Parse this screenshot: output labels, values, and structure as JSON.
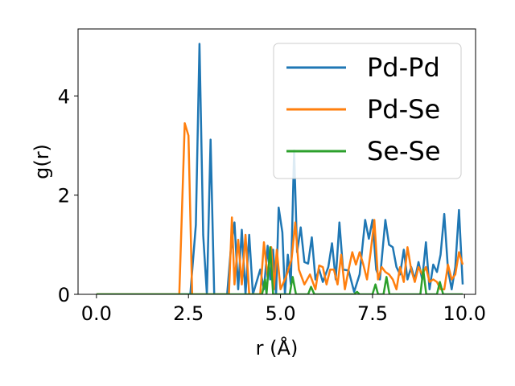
{
  "chart_data": {
    "type": "line",
    "xlabel": "r (Å)",
    "ylabel": "g(r)",
    "xlim": [
      -0.5,
      10.3
    ],
    "ylim": [
      0,
      5.35
    ],
    "x_ticks": [
      0.0,
      2.5,
      5.0,
      7.5,
      10.0
    ],
    "x_tick_labels": [
      "0.0",
      "2.5",
      "5.0",
      "7.5",
      "10.0"
    ],
    "y_ticks": [
      0,
      2,
      4
    ],
    "y_tick_labels": [
      "0",
      "2",
      "4"
    ],
    "grid": false,
    "legend_position": "top-right",
    "series": [
      {
        "name": "Pd-Pd",
        "color": "#1f77b4",
        "points": [
          [
            0.0,
            0
          ],
          [
            2.55,
            0
          ],
          [
            2.7,
            1.4
          ],
          [
            2.8,
            5.05
          ],
          [
            2.9,
            1.2
          ],
          [
            3.0,
            0
          ],
          [
            3.1,
            3.12
          ],
          [
            3.2,
            0
          ],
          [
            3.55,
            0
          ],
          [
            3.65,
            0.9
          ],
          [
            3.75,
            1.45
          ],
          [
            3.85,
            0.1
          ],
          [
            3.95,
            1.3
          ],
          [
            4.05,
            0
          ],
          [
            4.15,
            1.2
          ],
          [
            4.25,
            0
          ],
          [
            4.45,
            0.5
          ],
          [
            4.55,
            0.1
          ],
          [
            4.65,
            0.98
          ],
          [
            4.72,
            0.3
          ],
          [
            4.8,
            0.9
          ],
          [
            4.88,
            0
          ],
          [
            4.95,
            1.75
          ],
          [
            5.05,
            1.25
          ],
          [
            5.12,
            0
          ],
          [
            5.2,
            0.8
          ],
          [
            5.28,
            0.2
          ],
          [
            5.37,
            2.9
          ],
          [
            5.45,
            0.85
          ],
          [
            5.55,
            1.35
          ],
          [
            5.65,
            0.65
          ],
          [
            5.75,
            0.62
          ],
          [
            5.85,
            1.15
          ],
          [
            5.95,
            0.3
          ],
          [
            6.05,
            0.5
          ],
          [
            6.15,
            0.25
          ],
          [
            6.3,
            0.55
          ],
          [
            6.4,
            1.03
          ],
          [
            6.5,
            0.3
          ],
          [
            6.6,
            1.45
          ],
          [
            6.7,
            0.5
          ],
          [
            6.85,
            0.48
          ],
          [
            7.0,
            0.05
          ],
          [
            7.15,
            0.4
          ],
          [
            7.3,
            1.5
          ],
          [
            7.4,
            1.12
          ],
          [
            7.5,
            1.5
          ],
          [
            7.6,
            0.5
          ],
          [
            7.7,
            0.3
          ],
          [
            7.85,
            1.5
          ],
          [
            7.95,
            1.0
          ],
          [
            8.05,
            0.95
          ],
          [
            8.15,
            0.55
          ],
          [
            8.25,
            0.4
          ],
          [
            8.35,
            0.9
          ],
          [
            8.45,
            0.3
          ],
          [
            8.55,
            0.55
          ],
          [
            8.65,
            0.3
          ],
          [
            8.75,
            0.65
          ],
          [
            8.85,
            0.3
          ],
          [
            8.95,
            1.05
          ],
          [
            9.05,
            0.1
          ],
          [
            9.15,
            0.6
          ],
          [
            9.25,
            0.45
          ],
          [
            9.35,
            0.8
          ],
          [
            9.45,
            1.62
          ],
          [
            9.55,
            0.5
          ],
          [
            9.65,
            0.1
          ],
          [
            9.75,
            0.55
          ],
          [
            9.85,
            1.7
          ],
          [
            9.95,
            0.2
          ]
        ]
      },
      {
        "name": "Pd-Se",
        "color": "#ff7f0e",
        "points": [
          [
            0.0,
            0
          ],
          [
            2.25,
            0
          ],
          [
            2.4,
            3.45
          ],
          [
            2.5,
            3.2
          ],
          [
            2.6,
            0
          ],
          [
            3.6,
            0
          ],
          [
            3.68,
            1.55
          ],
          [
            3.75,
            0.2
          ],
          [
            3.85,
            1.1
          ],
          [
            3.95,
            0.2
          ],
          [
            4.05,
            1.2
          ],
          [
            4.15,
            0
          ],
          [
            4.45,
            0
          ],
          [
            4.55,
            1.05
          ],
          [
            4.65,
            0.35
          ],
          [
            4.75,
            0.95
          ],
          [
            4.82,
            0.1
          ],
          [
            4.9,
            0.9
          ],
          [
            5.0,
            0.1
          ],
          [
            5.15,
            0.35
          ],
          [
            5.3,
            0.7
          ],
          [
            5.4,
            1.45
          ],
          [
            5.5,
            0.5
          ],
          [
            5.65,
            0.2
          ],
          [
            5.8,
            0.4
          ],
          [
            5.95,
            0.1
          ],
          [
            6.05,
            0.58
          ],
          [
            6.15,
            0.55
          ],
          [
            6.25,
            0.2
          ],
          [
            6.35,
            0.5
          ],
          [
            6.45,
            0.5
          ],
          [
            6.55,
            0.2
          ],
          [
            6.65,
            0.8
          ],
          [
            6.75,
            0.1
          ],
          [
            6.85,
            0.5
          ],
          [
            6.95,
            0.85
          ],
          [
            7.05,
            0.6
          ],
          [
            7.15,
            0.85
          ],
          [
            7.25,
            0.6
          ],
          [
            7.35,
            0.3
          ],
          [
            7.45,
            0.85
          ],
          [
            7.55,
            1.5
          ],
          [
            7.65,
            0.3
          ],
          [
            7.75,
            0.55
          ],
          [
            7.85,
            0.45
          ],
          [
            7.95,
            0.4
          ],
          [
            8.05,
            0.3
          ],
          [
            8.15,
            0.1
          ],
          [
            8.25,
            0.55
          ],
          [
            8.35,
            0.25
          ],
          [
            8.45,
            0.95
          ],
          [
            8.55,
            0.5
          ],
          [
            8.65,
            0.25
          ],
          [
            8.75,
            0.55
          ],
          [
            8.85,
            0.4
          ],
          [
            8.95,
            0.55
          ],
          [
            9.05,
            0.25
          ],
          [
            9.15,
            0.3
          ],
          [
            9.25,
            0.25
          ],
          [
            9.35,
            0.1
          ],
          [
            9.45,
            0.1
          ],
          [
            9.55,
            0.6
          ],
          [
            9.65,
            0.3
          ],
          [
            9.75,
            0.4
          ],
          [
            9.85,
            0.85
          ],
          [
            9.95,
            0.6
          ]
        ]
      },
      {
        "name": "Se-Se",
        "color": "#2ca02c",
        "points": [
          [
            0.0,
            0
          ],
          [
            4.5,
            0
          ],
          [
            4.58,
            0.3
          ],
          [
            4.62,
            0
          ],
          [
            4.72,
            0.95
          ],
          [
            4.8,
            0
          ],
          [
            5.25,
            0
          ],
          [
            5.33,
            0.35
          ],
          [
            5.42,
            0
          ],
          [
            5.75,
            0
          ],
          [
            5.83,
            0.15
          ],
          [
            5.92,
            0
          ],
          [
            7.0,
            0
          ],
          [
            7.08,
            0.05
          ],
          [
            7.15,
            0
          ],
          [
            7.5,
            0
          ],
          [
            7.58,
            0.2
          ],
          [
            7.65,
            0
          ],
          [
            7.8,
            0
          ],
          [
            7.88,
            0.35
          ],
          [
            7.96,
            0
          ],
          [
            8.8,
            0
          ],
          [
            8.88,
            0.5
          ],
          [
            8.96,
            0
          ],
          [
            9.25,
            0
          ],
          [
            9.33,
            0.25
          ],
          [
            9.42,
            0
          ],
          [
            9.95,
            0
          ]
        ]
      }
    ]
  }
}
